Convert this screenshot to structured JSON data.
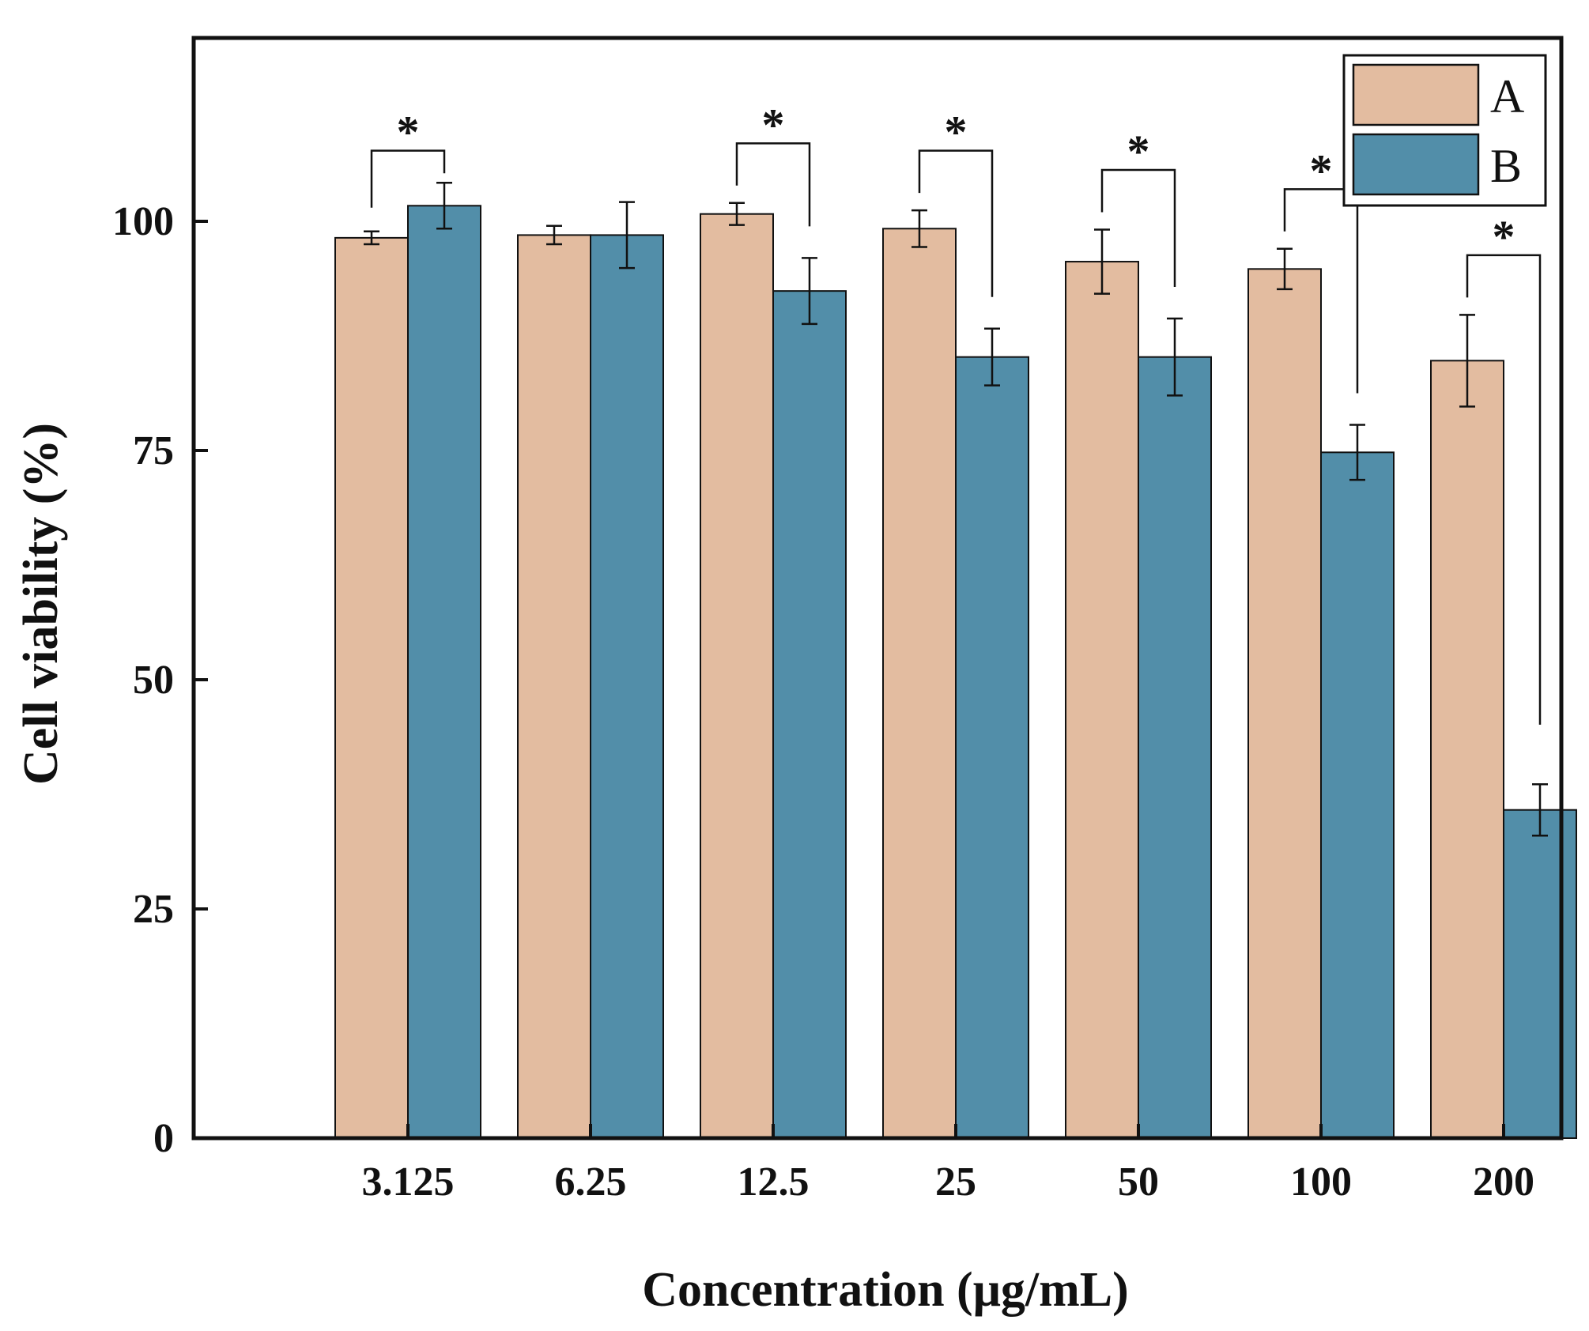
{
  "chart_data": {
    "type": "bar",
    "categories": [
      "3.125",
      "6.25",
      "12.5",
      "25",
      "50",
      "100",
      "200"
    ],
    "series": [
      {
        "name": "A",
        "values": [
          98.2,
          98.5,
          100.8,
          99.2,
          95.6,
          94.8,
          84.8
        ],
        "errors": [
          0.7,
          1.0,
          1.2,
          2.0,
          3.5,
          2.2,
          5.0
        ]
      },
      {
        "name": "B",
        "values": [
          101.7,
          98.5,
          92.4,
          85.2,
          85.2,
          74.8,
          35.8
        ],
        "errors": [
          2.5,
          3.6,
          3.6,
          3.1,
          4.2,
          3.0,
          2.8
        ]
      }
    ],
    "significance": [
      {
        "category": "3.125",
        "label": "*"
      },
      {
        "category": "12.5",
        "label": "*"
      },
      {
        "category": "25",
        "label": "*"
      },
      {
        "category": "50",
        "label": "*"
      },
      {
        "category": "100",
        "label": "*"
      },
      {
        "category": "200",
        "label": "*"
      }
    ],
    "xlabel": "Concentration (μg/mL)",
    "ylabel": "Cell viability (%)",
    "ylim": [
      0,
      120
    ],
    "yticks": [
      0,
      25,
      50,
      75,
      100
    ],
    "grid": false,
    "legend_position": "top-right",
    "colors": {
      "A": "#e3bca0",
      "B": "#528ea9"
    }
  }
}
